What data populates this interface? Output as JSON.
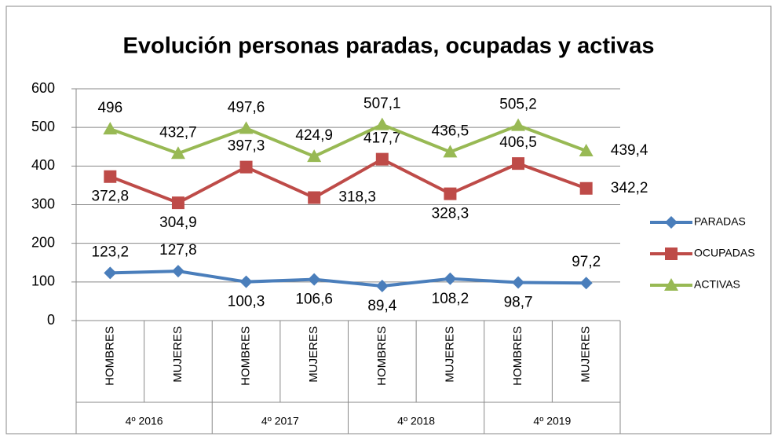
{
  "chart_data": {
    "type": "line",
    "title": "Evolución personas paradas, ocupadas y activas",
    "categories": [
      "HOMBRES",
      "MUJERES",
      "HOMBRES",
      "MUJERES",
      "HOMBRES",
      "MUJERES",
      "HOMBRES",
      "MUJERES"
    ],
    "category_groups": [
      "4º 2016",
      "4º 2017",
      "4º 2018",
      "4º 2019"
    ],
    "series": [
      {
        "name": "PARADAS",
        "color": "#4a7ebb",
        "marker": "diamond",
        "values": [
          123.2,
          127.8,
          100.3,
          106.6,
          89.4,
          108.2,
          98.7,
          97.2
        ],
        "value_labels": [
          "123,2",
          "127,8",
          "100,3",
          "106,6",
          "89,4",
          "108,2",
          "98,7",
          "97,2"
        ]
      },
      {
        "name": "OCUPADAS",
        "color": "#be4b48",
        "marker": "square",
        "values": [
          372.8,
          304.9,
          397.3,
          318.3,
          417.7,
          328.3,
          406.5,
          342.2
        ],
        "value_labels": [
          "372,8",
          "304,9",
          "397,3",
          "318,3",
          "417,7",
          "328,3",
          "406,5",
          "342,2"
        ]
      },
      {
        "name": "ACTIVAS",
        "color": "#98b954",
        "marker": "triangle",
        "values": [
          496,
          432.7,
          497.6,
          424.9,
          507.1,
          436.5,
          505.2,
          439.4
        ],
        "value_labels": [
          "496",
          "432,7",
          "497,6",
          "424,9",
          "507,1",
          "436,5",
          "505,2",
          "439,4"
        ]
      }
    ],
    "ylim": [
      0,
      600
    ],
    "yticks": [
      0,
      100,
      200,
      300,
      400,
      500,
      600
    ],
    "grid": true,
    "legend": "right"
  }
}
